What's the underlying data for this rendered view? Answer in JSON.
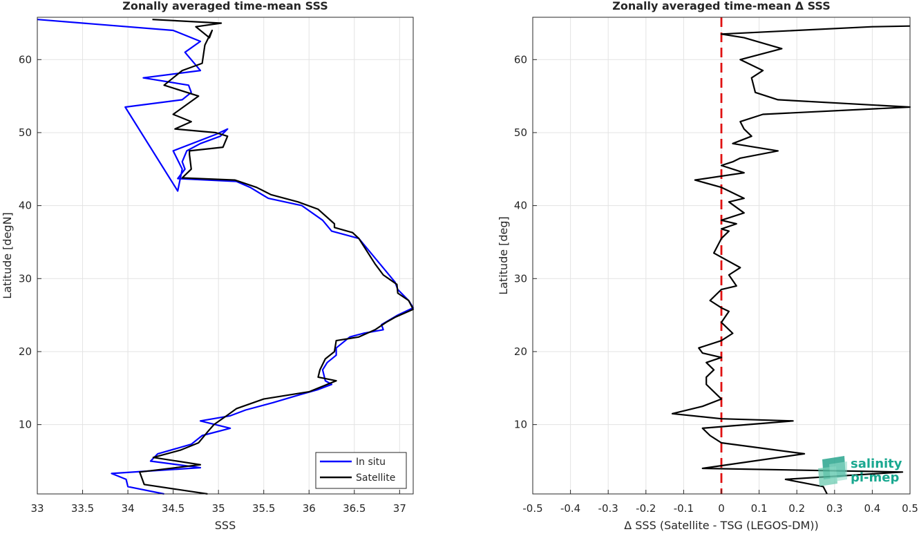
{
  "chart_data": [
    {
      "type": "line",
      "title": "Zonally averaged time-mean SSS",
      "xlabel": "SSS",
      "ylabel": "Latitude [degN]",
      "xlim": [
        33,
        37.15
      ],
      "ylim": [
        0.5,
        65.8
      ],
      "xticks": [
        "33",
        "33.5",
        "34",
        "34.5",
        "35",
        "35.5",
        "36",
        "36.5",
        "37"
      ],
      "yticks": [
        "10",
        "20",
        "30",
        "40",
        "50",
        "60"
      ],
      "grid": true,
      "legend_position": "bottom-right",
      "series": [
        {
          "name": "In situ",
          "color": "#0000ff",
          "x": [
            34.4,
            34.0,
            33.98,
            33.82,
            34.8,
            34.25,
            34.33,
            34.7,
            34.82,
            35.13,
            34.8,
            35.13,
            35.3,
            35.6,
            35.9,
            36.1,
            36.25,
            36.18,
            36.15,
            36.2,
            36.3,
            36.3,
            36.45,
            36.6,
            36.82,
            36.8,
            36.98,
            37.15,
            37.1,
            36.98,
            36.95,
            36.85,
            36.75,
            36.55,
            36.25,
            36.15,
            35.92,
            35.55,
            35.35,
            35.2,
            34.55,
            34.63,
            34.6,
            34.65,
            34.8,
            35.02,
            35.1,
            34.98,
            34.5,
            34.6,
            34.55,
            33.97,
            34.6,
            34.7,
            34.67,
            34.17,
            34.8,
            34.63,
            34.8,
            34.5,
            33.0
          ],
          "y": [
            0.5,
            1.5,
            2.5,
            3.3,
            4.1,
            5.0,
            6.0,
            7.3,
            8.5,
            9.5,
            10.5,
            11.2,
            12.0,
            13.0,
            14.1,
            14.8,
            15.5,
            16.0,
            17.5,
            18.5,
            19.5,
            20.5,
            22.0,
            22.5,
            23.0,
            23.7,
            25.0,
            26.0,
            27.0,
            28.5,
            29.5,
            31.0,
            32.5,
            35.5,
            36.5,
            38.0,
            40.0,
            41.0,
            42.5,
            43.3,
            43.7,
            45.0,
            46.0,
            47.5,
            48.5,
            49.5,
            50.5,
            49.8,
            47.5,
            45.0,
            42.0,
            53.5,
            54.5,
            55.5,
            56.5,
            57.5,
            58.5,
            61.0,
            62.5,
            64.0,
            65.5
          ]
        },
        {
          "name": "Satellite",
          "color": "#000000",
          "x": [
            34.88,
            34.18,
            34.13,
            34.8,
            34.28,
            34.58,
            34.78,
            34.88,
            34.95,
            35.1,
            35.2,
            35.5,
            36.0,
            36.3,
            36.1,
            36.12,
            36.18,
            36.28,
            36.3,
            36.55,
            36.73,
            36.85,
            36.95,
            37.15,
            37.1,
            36.98,
            36.97,
            36.82,
            36.73,
            36.55,
            36.48,
            36.28,
            36.28,
            36.1,
            35.88,
            35.58,
            35.42,
            35.18,
            34.6,
            34.7,
            34.68,
            34.68,
            35.05,
            35.1,
            34.97,
            34.52,
            34.7,
            34.5,
            34.78,
            34.4,
            34.6,
            34.82,
            34.85,
            34.93,
            34.9,
            34.75,
            35.03,
            34.27
          ],
          "y": [
            0.5,
            1.8,
            3.5,
            4.5,
            5.5,
            6.5,
            7.5,
            9.0,
            10.0,
            11.3,
            12.2,
            13.5,
            14.5,
            16.0,
            16.5,
            17.5,
            19.0,
            20.0,
            21.5,
            22.0,
            23.0,
            24.0,
            24.7,
            25.8,
            27.0,
            28.0,
            29.2,
            30.5,
            32.0,
            35.5,
            36.3,
            37.0,
            37.5,
            39.5,
            40.5,
            41.5,
            42.5,
            43.5,
            43.8,
            45.0,
            47.0,
            47.5,
            48.0,
            49.5,
            50.0,
            50.5,
            51.5,
            52.5,
            55.0,
            56.5,
            58.5,
            59.5,
            62.0,
            64.0,
            63.0,
            64.5,
            65.0,
            65.5
          ]
        }
      ]
    },
    {
      "type": "line",
      "title": "Zonally averaged time-mean Δ SSS",
      "xlabel": "Δ SSS (Satellite - TSG (LEGOS-DM))",
      "ylabel": "Latitude [deg]",
      "xlim": [
        -0.5,
        0.5
      ],
      "ylim": [
        0.5,
        65.8
      ],
      "xticks": [
        "-0.5",
        "-0.4",
        "-0.3",
        "-0.2",
        "-0.1",
        "0",
        "0.1",
        "0.2",
        "0.3",
        "0.4",
        "0.5"
      ],
      "yticks": [
        "10",
        "20",
        "30",
        "40",
        "50",
        "60"
      ],
      "grid": true,
      "reference_line": {
        "x": 0,
        "color": "#e01010",
        "style": "dashed"
      },
      "series": [
        {
          "color": "#000000",
          "x": [
            0.28,
            0.27,
            0.17,
            0.48,
            -0.05,
            0.22,
            0.0,
            -0.03,
            -0.05,
            0.19,
            0.0,
            -0.13,
            -0.05,
            0.0,
            -0.02,
            -0.04,
            -0.04,
            -0.02,
            -0.04,
            0.0,
            -0.05,
            -0.06,
            0.0,
            0.03,
            0.0,
            0.02,
            0.0,
            -0.03,
            0.0,
            0.04,
            0.02,
            0.05,
            -0.02,
            0.0,
            0.02,
            0.0,
            0.04,
            0.0,
            0.06,
            0.02,
            0.06,
            0.02,
            0.0,
            -0.07,
            0.06,
            0.0,
            0.03,
            0.05,
            0.15,
            0.03,
            0.08,
            0.06,
            0.05,
            0.11,
            0.5,
            0.15,
            0.09,
            0.08,
            0.11,
            0.05,
            0.16,
            0.06,
            0.0,
            0.4,
            0.5
          ],
          "y": [
            0.5,
            1.5,
            2.5,
            3.5,
            4.0,
            6.0,
            7.5,
            8.5,
            9.5,
            10.5,
            10.8,
            11.5,
            12.5,
            13.5,
            14.5,
            15.5,
            16.5,
            17.5,
            18.5,
            19.2,
            19.8,
            20.5,
            21.5,
            22.5,
            24.0,
            25.5,
            26.0,
            27.0,
            28.5,
            29.0,
            30.5,
            31.5,
            33.5,
            35.5,
            36.5,
            36.8,
            37.5,
            38.0,
            39.0,
            40.5,
            41.0,
            42.0,
            42.5,
            43.5,
            44.5,
            45.5,
            46.0,
            46.5,
            47.5,
            48.5,
            49.5,
            50.5,
            51.5,
            52.5,
            53.5,
            54.5,
            55.5,
            57.5,
            58.5,
            60.0,
            61.5,
            63.0,
            63.5,
            64.5,
            64.6
          ]
        }
      ]
    }
  ],
  "legend": {
    "items": [
      "In situ",
      "Satellite"
    ]
  },
  "logo": {
    "line1": "salinity",
    "line2": "pi-mep",
    "color": "#1aa890"
  }
}
